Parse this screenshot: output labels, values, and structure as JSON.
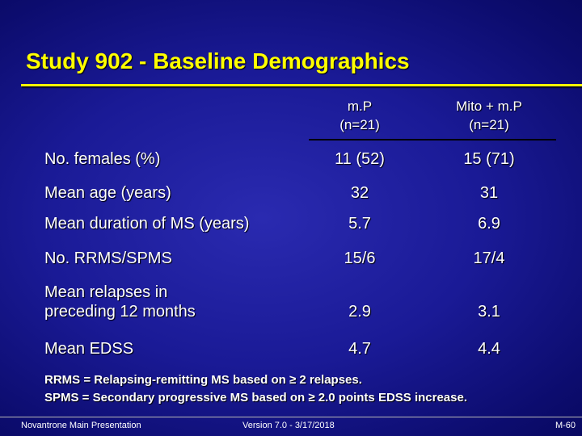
{
  "slide": {
    "title": "Study 902 - Baseline Demographics"
  },
  "table": {
    "columns": [
      {
        "line1": "m.P",
        "line2": "(n=21)"
      },
      {
        "line1": "Mito + m.P",
        "line2": "(n=21)"
      }
    ],
    "rows": [
      {
        "label": "No. females (%)",
        "v1": "11 (52)",
        "v2": "15 (71)"
      },
      {
        "label": "Mean age (years)",
        "v1": "32",
        "v2": "31"
      },
      {
        "label": "Mean duration of MS (years)",
        "v1": "5.7",
        "v2": "6.9"
      },
      {
        "label": "No. RRMS/SPMS",
        "v1": "15/6",
        "v2": "17/4"
      },
      {
        "label_line1": "Mean relapses in",
        "label_line2": "preceding 12 months",
        "v1": "2.9",
        "v2": "3.1"
      },
      {
        "label": "Mean EDSS",
        "v1": "4.7",
        "v2": "4.4"
      }
    ]
  },
  "footnotes": [
    "RRMS = Relapsing-remitting MS based on ≥ 2 relapses.",
    "SPMS = Secondary progressive MS based on ≥ 2.0 points EDSS increase."
  ],
  "footer": {
    "left": "Novantrone Main Presentation",
    "center": "Version 7.0 - 3/17/2018",
    "right": "M-60"
  },
  "colors": {
    "title": "#ffff00",
    "text": "#ffffff",
    "background": "#1a1a96"
  }
}
